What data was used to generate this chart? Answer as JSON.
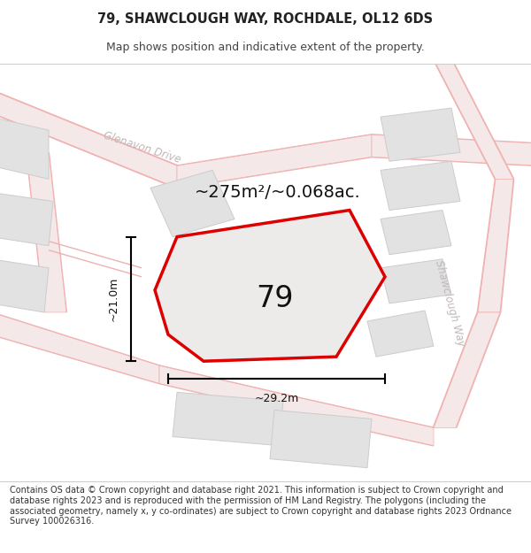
{
  "title": "79, SHAWCLOUGH WAY, ROCHDALE, OL12 6DS",
  "subtitle": "Map shows position and indicative extent of the property.",
  "area_text": "~275m²/~0.068ac.",
  "width_label": "~29.2m",
  "height_label": "~21.0m",
  "plot_number": "79",
  "footer_text": "Contains OS data © Crown copyright and database right 2021. This information is subject to Crown copyright and database rights 2023 and is reproduced with the permission of HM Land Registry. The polygons (including the associated geometry, namely x, y co-ordinates) are subject to Crown copyright and database rights 2023 Ordnance Survey 100026316.",
  "map_bg": "#f5f0f0",
  "road_color": "#f0b0b0",
  "building_fill": "#e2e2e2",
  "building_stroke": "#cccccc",
  "plot_fill": "#edeaea",
  "plot_stroke": "#dd0000",
  "road_label_color": "#c0b8b8",
  "title_fontsize": 10.5,
  "subtitle_fontsize": 9,
  "footer_fontsize": 7.0,
  "area_fontsize": 14,
  "number_fontsize": 24
}
